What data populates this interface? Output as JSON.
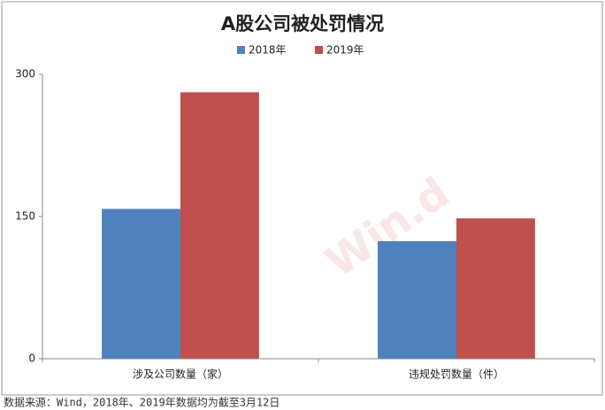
{
  "chart_data": {
    "type": "bar",
    "title": "A股公司被处罚情况",
    "categories": [
      "涉及公司数量（家）",
      "违规处罚数量（件）"
    ],
    "series": [
      {
        "name": "2018年",
        "color": "#4f81bd",
        "values": [
          158,
          124
        ]
      },
      {
        "name": "2019年",
        "color": "#c0504d",
        "values": [
          281,
          148
        ]
      }
    ],
    "ylim": [
      0,
      300
    ],
    "yticks": [
      0,
      150,
      300
    ],
    "grid": false,
    "legend": "top",
    "watermark": "Win.d",
    "source": "数据来源：Wind，2018年、2019年数据均为截至3月12日"
  }
}
